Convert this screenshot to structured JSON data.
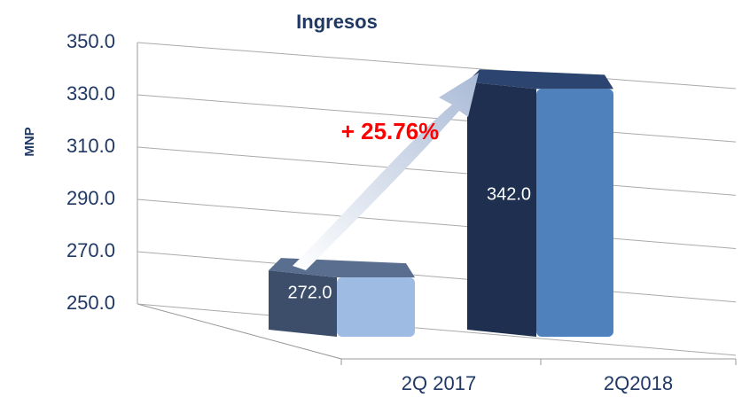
{
  "chart_data": {
    "type": "bar",
    "title": "Ingresos",
    "ylabel": "MNP",
    "categories": [
      "2Q 2017",
      "2Q2018"
    ],
    "values": [
      272,
      342
    ],
    "value_labels": [
      "272.0",
      "342.0"
    ],
    "colors": [
      "#9dbbe3",
      "#4f81bd"
    ],
    "ylim": [
      250,
      350
    ],
    "yticks": [
      {
        "value": 250,
        "label": "250.0"
      },
      {
        "value": 270,
        "label": "270.0"
      },
      {
        "value": 290,
        "label": "290.0"
      },
      {
        "value": 310,
        "label": "310.0"
      },
      {
        "value": 330,
        "label": "330.0"
      },
      {
        "value": 350,
        "label": "350.0"
      }
    ],
    "grid": true,
    "annotation": "+ 25.76%"
  }
}
